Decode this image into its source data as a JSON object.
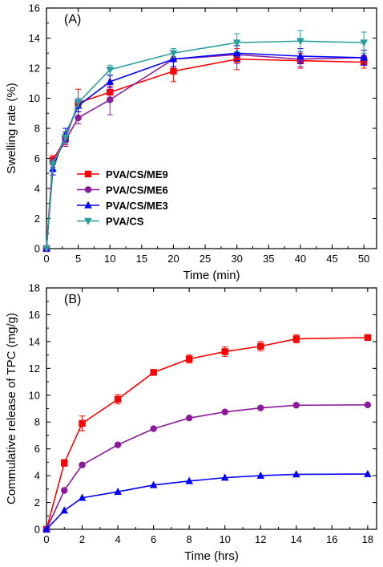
{
  "chart_data": [
    {
      "type": "line",
      "panel_label": "(A)",
      "xlabel": "Time (min)",
      "ylabel": "Swelling rate (%)",
      "xlim": [
        0,
        52
      ],
      "ylim": [
        0,
        16
      ],
      "xticks": [
        0,
        5,
        10,
        15,
        20,
        25,
        30,
        35,
        40,
        45,
        50
      ],
      "yticks": [
        0,
        2,
        4,
        6,
        8,
        10,
        12,
        14,
        16
      ],
      "x": [
        0,
        1,
        3,
        5,
        10,
        20,
        30,
        40,
        50
      ],
      "legend_position": "center-left",
      "series": [
        {
          "name": "PVA/CS/ME9",
          "color": "#ff0000",
          "marker": "square",
          "values": [
            0,
            5.9,
            7.3,
            9.7,
            10.4,
            11.8,
            12.6,
            12.5,
            12.4
          ],
          "errors": [
            0,
            0.3,
            0.4,
            0.9,
            0.4,
            0.7,
            0.7,
            0.5,
            0.4
          ]
        },
        {
          "name": "PVA/CS/ME6",
          "color": "#8b1a9b",
          "marker": "circle",
          "values": [
            0,
            5.7,
            7.2,
            8.7,
            9.9,
            12.6,
            12.9,
            12.6,
            12.7
          ],
          "errors": [
            0,
            0.3,
            0.4,
            0.4,
            1.0,
            0.5,
            0.6,
            0.5,
            0.5
          ]
        },
        {
          "name": "PVA/CS/ME3",
          "color": "#0000ff",
          "marker": "triangle-up",
          "values": [
            0,
            5.3,
            7.6,
            9.5,
            11.1,
            12.6,
            13.0,
            12.8,
            12.7
          ],
          "errors": [
            0,
            0.4,
            0.4,
            0.4,
            0.4,
            0.5,
            0.5,
            0.5,
            0.5
          ]
        },
        {
          "name": "PVA/CS",
          "color": "#2a9d9d",
          "marker": "triangle-down",
          "values": [
            0,
            5.6,
            7.4,
            9.7,
            11.9,
            13.0,
            13.7,
            13.8,
            13.7
          ],
          "errors": [
            0,
            0.3,
            0.4,
            0.3,
            0.3,
            0.3,
            0.6,
            0.7,
            0.7
          ]
        }
      ]
    },
    {
      "type": "line",
      "panel_label": "(B)",
      "xlabel": "Time (hrs)",
      "ylabel": "Commulative release of TPC (mg/g)",
      "xlim": [
        0,
        18.5
      ],
      "ylim": [
        0,
        18
      ],
      "xticks": [
        0,
        2,
        4,
        6,
        8,
        10,
        12,
        14,
        16,
        18
      ],
      "yticks": [
        0,
        2,
        4,
        6,
        8,
        10,
        12,
        14,
        16,
        18
      ],
      "series": [
        {
          "color": "#ff0000",
          "marker": "square",
          "x": [
            0,
            1,
            2,
            4,
            6,
            8,
            10,
            12,
            14,
            18
          ],
          "values": [
            0,
            4.95,
            7.9,
            9.7,
            11.7,
            12.7,
            13.25,
            13.65,
            14.2,
            14.3
          ],
          "errors": [
            0,
            0.25,
            0.55,
            0.35,
            0.2,
            0.3,
            0.35,
            0.35,
            0.3,
            0.2
          ]
        },
        {
          "color": "#8b1a9b",
          "marker": "circle",
          "x": [
            0,
            1,
            2,
            4,
            6,
            8,
            10,
            12,
            14,
            18
          ],
          "values": [
            0,
            2.9,
            4.8,
            6.3,
            7.5,
            8.3,
            8.75,
            9.05,
            9.25,
            9.28
          ],
          "errors": [
            0,
            0,
            0,
            0,
            0,
            0,
            0,
            0,
            0,
            0
          ]
        },
        {
          "color": "#0000ff",
          "marker": "triangle-up",
          "x": [
            0,
            1,
            2,
            4,
            6,
            8,
            10,
            12,
            14,
            18
          ],
          "values": [
            0,
            1.4,
            2.35,
            2.8,
            3.3,
            3.6,
            3.85,
            4.0,
            4.1,
            4.12
          ],
          "errors": [
            0,
            0,
            0,
            0,
            0,
            0,
            0,
            0,
            0,
            0
          ]
        }
      ]
    }
  ]
}
